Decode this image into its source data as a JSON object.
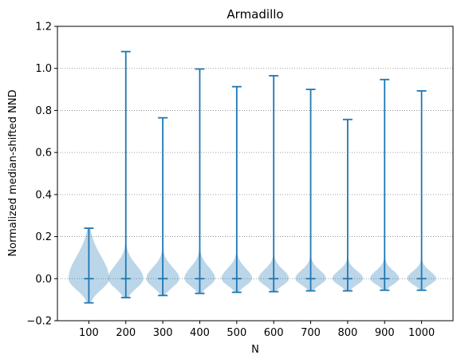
{
  "chart_data": {
    "type": "violin",
    "title": "Armadillo",
    "xlabel": "N",
    "ylabel": "Normalized median-shifted NND",
    "ylim": [
      -0.2,
      1.2
    ],
    "yticks": [
      "−0.2",
      "0.0",
      "0.2",
      "0.4",
      "0.6",
      "0.8",
      "1.0",
      "1.2"
    ],
    "ytick_values": [
      -0.2,
      0.0,
      0.2,
      0.4,
      0.6,
      0.8,
      1.0,
      1.2
    ],
    "grid": "horizontal dotted",
    "categories": [
      "100",
      "200",
      "300",
      "400",
      "500",
      "600",
      "700",
      "800",
      "900",
      "1000"
    ],
    "violins": [
      {
        "min": -0.115,
        "median": 0.0,
        "max": 0.24,
        "halfwidth": 0.55,
        "spread_low": 0.1,
        "spread_high": 0.2
      },
      {
        "min": -0.09,
        "median": 0.0,
        "max": 1.08,
        "halfwidth": 0.48,
        "spread_low": 0.085,
        "spread_high": 0.12
      },
      {
        "min": -0.08,
        "median": 0.0,
        "max": 0.765,
        "halfwidth": 0.45,
        "spread_low": 0.075,
        "spread_high": 0.1
      },
      {
        "min": -0.07,
        "median": 0.0,
        "max": 0.997,
        "halfwidth": 0.42,
        "spread_low": 0.065,
        "spread_high": 0.1
      },
      {
        "min": -0.065,
        "median": 0.0,
        "max": 0.913,
        "halfwidth": 0.42,
        "spread_low": 0.06,
        "spread_high": 0.09
      },
      {
        "min": -0.062,
        "median": 0.0,
        "max": 0.965,
        "halfwidth": 0.42,
        "spread_low": 0.058,
        "spread_high": 0.08
      },
      {
        "min": -0.058,
        "median": 0.0,
        "max": 0.9,
        "halfwidth": 0.42,
        "spread_low": 0.055,
        "spread_high": 0.075
      },
      {
        "min": -0.058,
        "median": 0.0,
        "max": 0.757,
        "halfwidth": 0.42,
        "spread_low": 0.055,
        "spread_high": 0.07
      },
      {
        "min": -0.055,
        "median": 0.0,
        "max": 0.947,
        "halfwidth": 0.4,
        "spread_low": 0.05,
        "spread_high": 0.07
      },
      {
        "min": -0.055,
        "median": 0.0,
        "max": 0.893,
        "halfwidth": 0.4,
        "spread_low": 0.05,
        "spread_high": 0.065
      }
    ],
    "colors": {
      "line": "#1f77b4",
      "fill": "#1f77b4",
      "grid": "#808080"
    }
  }
}
